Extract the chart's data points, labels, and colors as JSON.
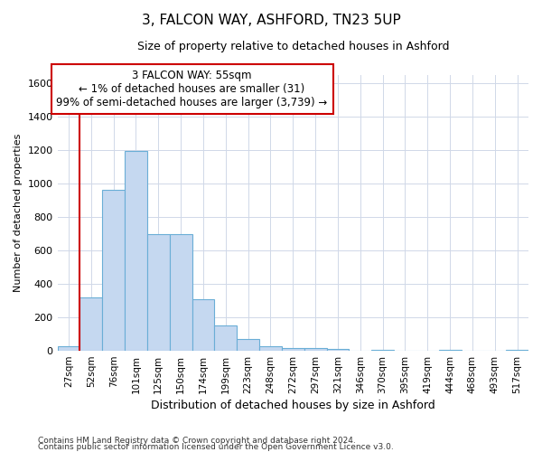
{
  "title_line1": "3, FALCON WAY, ASHFORD, TN23 5UP",
  "title_line2": "Size of property relative to detached houses in Ashford",
  "xlabel": "Distribution of detached houses by size in Ashford",
  "ylabel": "Number of detached properties",
  "footer_line1": "Contains HM Land Registry data © Crown copyright and database right 2024.",
  "footer_line2": "Contains public sector information licensed under the Open Government Licence v3.0.",
  "annotation_line1": "3 FALCON WAY: 55sqm",
  "annotation_line2": "← 1% of detached houses are smaller (31)",
  "annotation_line3": "99% of semi-detached houses are larger (3,739) →",
  "bar_labels": [
    "27sqm",
    "52sqm",
    "76sqm",
    "101sqm",
    "125sqm",
    "150sqm",
    "174sqm",
    "199sqm",
    "223sqm",
    "248sqm",
    "272sqm",
    "297sqm",
    "321sqm",
    "346sqm",
    "370sqm",
    "395sqm",
    "419sqm",
    "444sqm",
    "468sqm",
    "493sqm",
    "517sqm"
  ],
  "bar_values": [
    27,
    320,
    960,
    1195,
    700,
    700,
    310,
    150,
    68,
    25,
    15,
    15,
    10,
    0,
    5,
    0,
    0,
    5,
    0,
    0,
    5
  ],
  "bar_color": "#c5d8f0",
  "bar_edge_color": "#6aaed6",
  "marker_color": "#cc0000",
  "ylim": [
    0,
    1650
  ],
  "yticks": [
    0,
    200,
    400,
    600,
    800,
    1000,
    1200,
    1400,
    1600
  ],
  "background_color": "#ffffff",
  "grid_color": "#d0d8e8",
  "annotation_box_color": "#ffffff",
  "annotation_border_color": "#cc0000",
  "annotation_text_fontsize": 8.5,
  "title1_fontsize": 11,
  "title2_fontsize": 9,
  "xlabel_fontsize": 9,
  "ylabel_fontsize": 8,
  "footer_fontsize": 6.5,
  "xtick_fontsize": 7.5,
  "ytick_fontsize": 8
}
